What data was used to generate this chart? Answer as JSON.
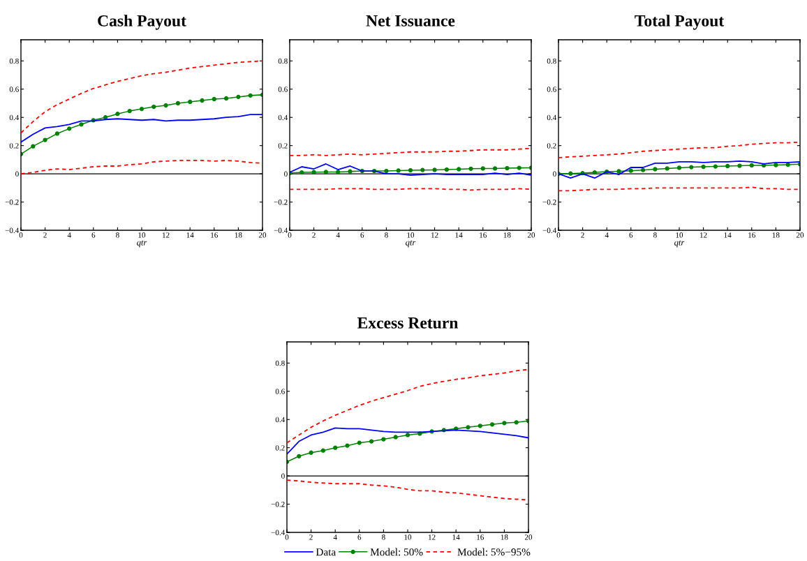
{
  "chart_data": [
    {
      "type": "line",
      "title": "Cash Payout",
      "xlabel": "qtr",
      "x": [
        0,
        1,
        2,
        3,
        4,
        5,
        6,
        7,
        8,
        9,
        10,
        11,
        12,
        13,
        14,
        15,
        16,
        17,
        18,
        19,
        20
      ],
      "xlim": [
        0,
        20
      ],
      "xticks": [
        0,
        2,
        4,
        6,
        8,
        10,
        12,
        14,
        16,
        18,
        20
      ],
      "ylim": [
        -0.4,
        0.95
      ],
      "yticks": [
        -0.4,
        -0.2,
        0,
        0.2,
        0.4,
        0.6,
        0.8
      ],
      "grid": false,
      "ref_lines": [
        {
          "axis": "y",
          "value": 0,
          "color": "#000000"
        }
      ],
      "series": [
        {
          "color": "#0000ff",
          "values": [
            0.225,
            0.28,
            0.325,
            0.335,
            0.35,
            0.375,
            0.375,
            0.385,
            0.39,
            0.385,
            0.38,
            0.385,
            0.375,
            0.38,
            0.38,
            0.385,
            0.39,
            0.4,
            0.405,
            0.42,
            0.42
          ]
        },
        {
          "color": "#008000",
          "marker": "circle",
          "values": [
            0.14,
            0.195,
            0.24,
            0.285,
            0.32,
            0.35,
            0.38,
            0.4,
            0.425,
            0.445,
            0.46,
            0.475,
            0.485,
            0.5,
            0.51,
            0.52,
            0.53,
            0.535,
            0.545,
            0.555,
            0.56
          ]
        },
        {
          "color": "#ff0000",
          "line_style": "dashed",
          "values": [
            0.0,
            0.01,
            0.025,
            0.035,
            0.03,
            0.04,
            0.05,
            0.055,
            0.055,
            0.065,
            0.07,
            0.085,
            0.09,
            0.095,
            0.095,
            0.095,
            0.09,
            0.095,
            0.09,
            0.08,
            0.075
          ]
        },
        {
          "color": "#ff0000",
          "line_style": "dashed",
          "values": [
            0.29,
            0.37,
            0.44,
            0.49,
            0.53,
            0.57,
            0.605,
            0.63,
            0.655,
            0.675,
            0.695,
            0.71,
            0.72,
            0.735,
            0.75,
            0.76,
            0.77,
            0.78,
            0.79,
            0.795,
            0.8
          ]
        }
      ]
    },
    {
      "type": "line",
      "title": "Net Issuance",
      "xlabel": "qtr",
      "x": [
        0,
        1,
        2,
        3,
        4,
        5,
        6,
        7,
        8,
        9,
        10,
        11,
        12,
        13,
        14,
        15,
        16,
        17,
        18,
        19,
        20
      ],
      "xlim": [
        0,
        20
      ],
      "xticks": [
        0,
        2,
        4,
        6,
        8,
        10,
        12,
        14,
        16,
        18,
        20
      ],
      "ylim": [
        -0.4,
        0.95
      ],
      "yticks": [
        -0.4,
        -0.2,
        0,
        0.2,
        0.4,
        0.6,
        0.8
      ],
      "grid": false,
      "ref_lines": [
        {
          "axis": "y",
          "value": 0,
          "color": "#000000"
        }
      ],
      "series": [
        {
          "color": "#0000ff",
          "values": [
            0.01,
            0.05,
            0.035,
            0.07,
            0.03,
            0.055,
            0.02,
            0.02,
            0.0,
            0.0,
            -0.01,
            -0.005,
            0.0,
            -0.005,
            -0.005,
            -0.005,
            -0.005,
            0.005,
            -0.005,
            0.005,
            -0.01
          ]
        },
        {
          "color": "#008000",
          "marker": "circle",
          "values": [
            0.005,
            0.01,
            0.012,
            0.013,
            0.013,
            0.017,
            0.02,
            0.02,
            0.02,
            0.023,
            0.025,
            0.027,
            0.028,
            0.03,
            0.033,
            0.036,
            0.038,
            0.038,
            0.04,
            0.042,
            0.043
          ]
        },
        {
          "color": "#ff0000",
          "line_style": "dashed",
          "values": [
            -0.11,
            -0.11,
            -0.11,
            -0.11,
            -0.105,
            -0.105,
            -0.105,
            -0.11,
            -0.11,
            -0.11,
            -0.105,
            -0.105,
            -0.105,
            -0.11,
            -0.11,
            -0.115,
            -0.11,
            -0.11,
            -0.11,
            -0.105,
            -0.11
          ]
        },
        {
          "color": "#ff0000",
          "line_style": "dashed",
          "values": [
            0.13,
            0.13,
            0.135,
            0.13,
            0.135,
            0.14,
            0.135,
            0.14,
            0.145,
            0.15,
            0.155,
            0.155,
            0.155,
            0.16,
            0.16,
            0.165,
            0.17,
            0.17,
            0.17,
            0.175,
            0.18
          ]
        }
      ]
    },
    {
      "type": "line",
      "title": "Total Payout",
      "xlabel": "qtr",
      "x": [
        0,
        1,
        2,
        3,
        4,
        5,
        6,
        7,
        8,
        9,
        10,
        11,
        12,
        13,
        14,
        15,
        16,
        17,
        18,
        19,
        20
      ],
      "xlim": [
        0,
        20
      ],
      "xticks": [
        0,
        2,
        4,
        6,
        8,
        10,
        12,
        14,
        16,
        18,
        20
      ],
      "ylim": [
        -0.4,
        0.95
      ],
      "yticks": [
        -0.4,
        -0.2,
        0,
        0.2,
        0.4,
        0.6,
        0.8
      ],
      "grid": false,
      "ref_lines": [
        {
          "axis": "y",
          "value": 0,
          "color": "#000000"
        }
      ],
      "series": [
        {
          "color": "#0000ff",
          "values": [
            0.0,
            -0.03,
            0.0,
            -0.03,
            0.015,
            -0.005,
            0.045,
            0.045,
            0.075,
            0.075,
            0.085,
            0.085,
            0.08,
            0.085,
            0.085,
            0.09,
            0.085,
            0.07,
            0.08,
            0.08,
            0.085
          ]
        },
        {
          "color": "#008000",
          "marker": "circle",
          "values": [
            0.0,
            0.002,
            0.005,
            0.01,
            0.015,
            0.018,
            0.022,
            0.027,
            0.033,
            0.038,
            0.043,
            0.047,
            0.05,
            0.052,
            0.055,
            0.057,
            0.06,
            0.06,
            0.062,
            0.065,
            0.068
          ]
        },
        {
          "color": "#ff0000",
          "line_style": "dashed",
          "values": [
            -0.12,
            -0.12,
            -0.115,
            -0.11,
            -0.11,
            -0.11,
            -0.105,
            -0.105,
            -0.1,
            -0.1,
            -0.1,
            -0.1,
            -0.1,
            -0.1,
            -0.1,
            -0.1,
            -0.095,
            -0.105,
            -0.105,
            -0.11,
            -0.11
          ]
        },
        {
          "color": "#ff0000",
          "line_style": "dashed",
          "values": [
            0.115,
            0.12,
            0.125,
            0.13,
            0.135,
            0.14,
            0.15,
            0.16,
            0.165,
            0.17,
            0.175,
            0.18,
            0.185,
            0.185,
            0.195,
            0.2,
            0.21,
            0.215,
            0.22,
            0.22,
            0.225
          ]
        }
      ]
    },
    {
      "type": "line",
      "title": "Excess Return",
      "x": [
        0,
        1,
        2,
        3,
        4,
        5,
        6,
        7,
        8,
        9,
        10,
        11,
        12,
        13,
        14,
        15,
        16,
        17,
        18,
        19,
        20
      ],
      "xlim": [
        0,
        20
      ],
      "xticks": [
        0,
        2,
        4,
        6,
        8,
        10,
        12,
        14,
        16,
        18,
        20
      ],
      "ylim": [
        -0.4,
        0.95
      ],
      "yticks": [
        -0.4,
        -0.2,
        0,
        0.2,
        0.4,
        0.6,
        0.8
      ],
      "grid": false,
      "legend": "bottom",
      "ref_lines": [
        {
          "axis": "y",
          "value": 0,
          "color": "#000000"
        }
      ],
      "series": [
        {
          "name": "Data",
          "color": "#0000ff",
          "values": [
            0.155,
            0.245,
            0.29,
            0.31,
            0.34,
            0.335,
            0.335,
            0.325,
            0.315,
            0.31,
            0.31,
            0.31,
            0.315,
            0.32,
            0.325,
            0.32,
            0.315,
            0.305,
            0.295,
            0.285,
            0.27
          ]
        },
        {
          "name": "Model: 50%",
          "color": "#008000",
          "marker": "circle",
          "values": [
            0.1,
            0.14,
            0.165,
            0.18,
            0.2,
            0.215,
            0.235,
            0.245,
            0.26,
            0.275,
            0.29,
            0.3,
            0.315,
            0.325,
            0.335,
            0.345,
            0.355,
            0.365,
            0.375,
            0.38,
            0.39
          ]
        },
        {
          "name": "Model: 5%−95%",
          "color": "#ff0000",
          "line_style": "dashed",
          "values": [
            -0.03,
            -0.035,
            -0.045,
            -0.05,
            -0.055,
            -0.055,
            -0.055,
            -0.065,
            -0.07,
            -0.08,
            -0.095,
            -0.105,
            -0.105,
            -0.115,
            -0.12,
            -0.13,
            -0.14,
            -0.15,
            -0.16,
            -0.165,
            -0.17
          ]
        },
        {
          "color": "#ff0000",
          "line_style": "dashed",
          "values": [
            0.235,
            0.29,
            0.345,
            0.39,
            0.43,
            0.465,
            0.5,
            0.53,
            0.555,
            0.58,
            0.605,
            0.635,
            0.655,
            0.67,
            0.685,
            0.695,
            0.71,
            0.72,
            0.73,
            0.745,
            0.755
          ]
        }
      ]
    }
  ]
}
